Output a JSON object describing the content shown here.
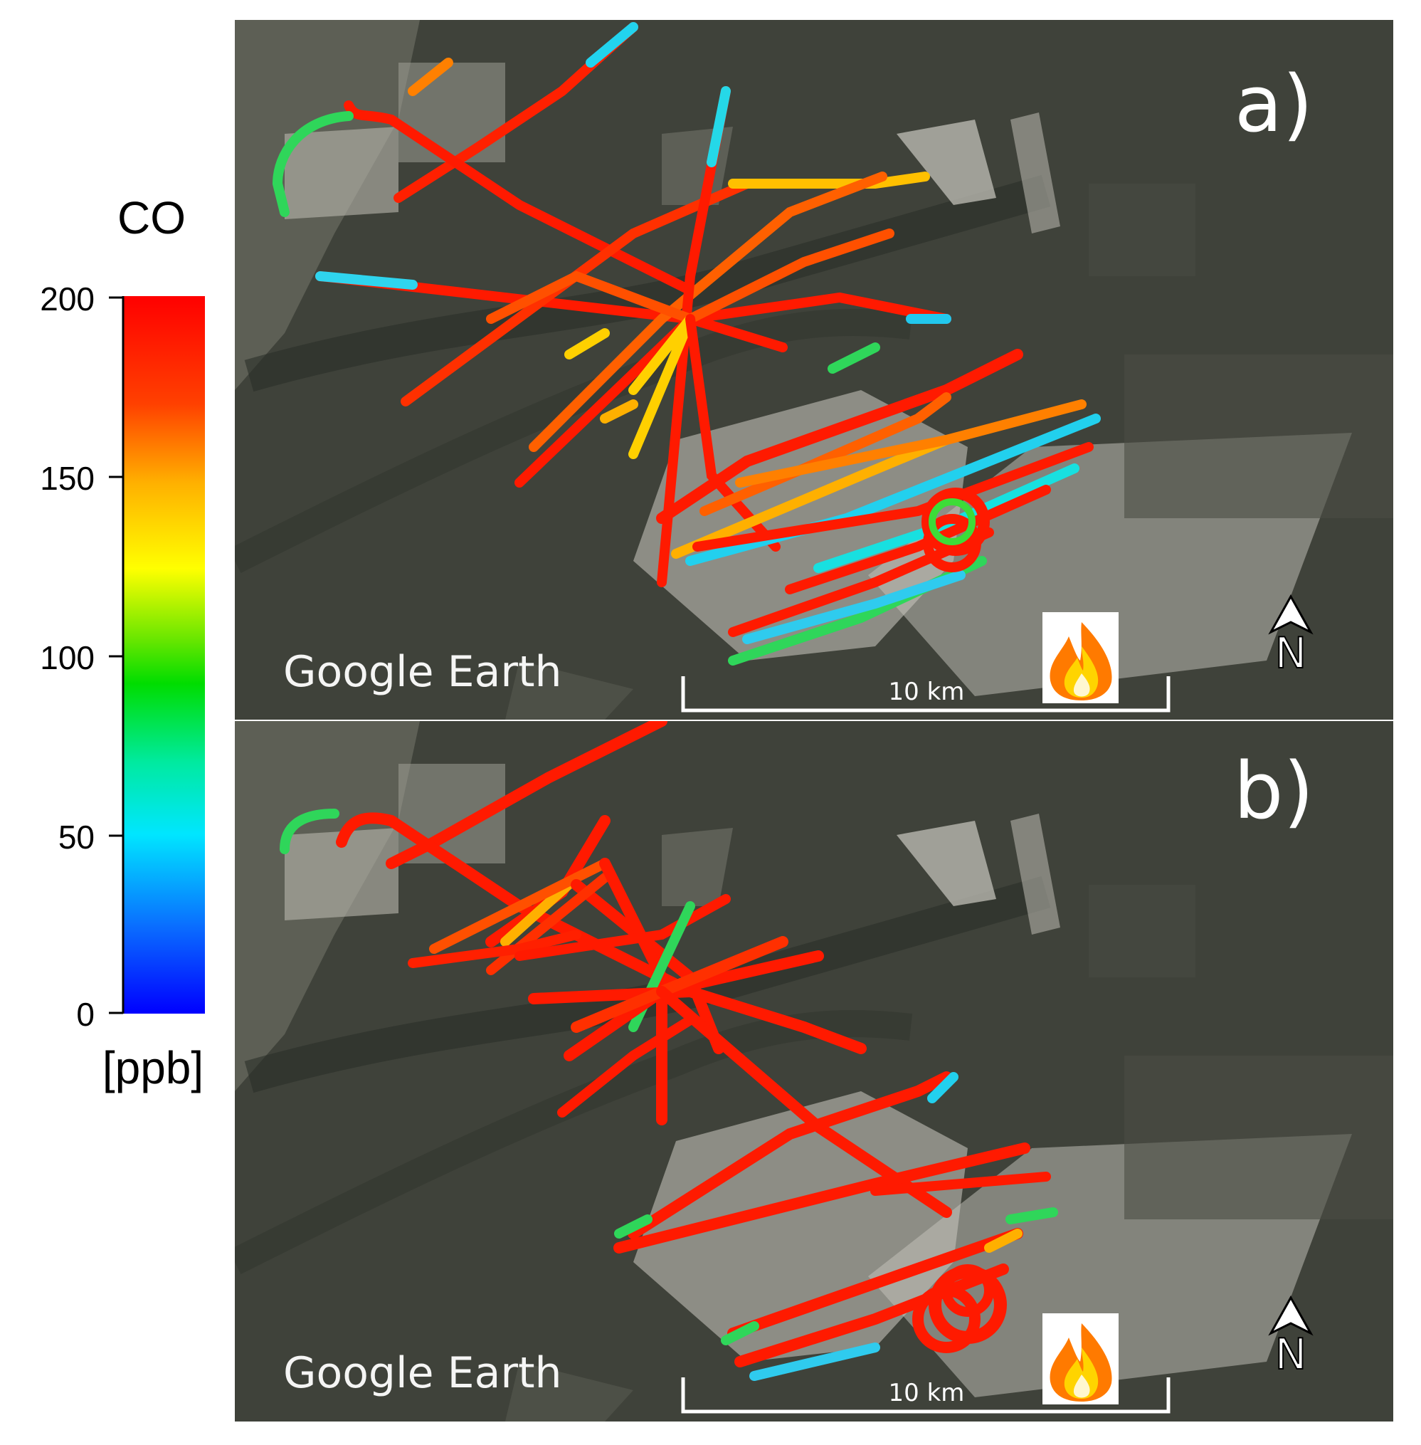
{
  "colorbar": {
    "title": "CO",
    "unit": "[ppb]",
    "ticks": [
      "200",
      "150",
      "100",
      "50",
      "0"
    ],
    "min": 0,
    "max": 200
  },
  "panels": [
    {
      "label": "a)",
      "watermark": "Google Earth",
      "scale_bar": "10 km",
      "north": "N",
      "fire_icon": "fire-icon"
    },
    {
      "label": "b)",
      "watermark": "Google Earth",
      "scale_bar": "10 km",
      "north": "N",
      "fire_icon": "fire-icon"
    }
  ]
}
